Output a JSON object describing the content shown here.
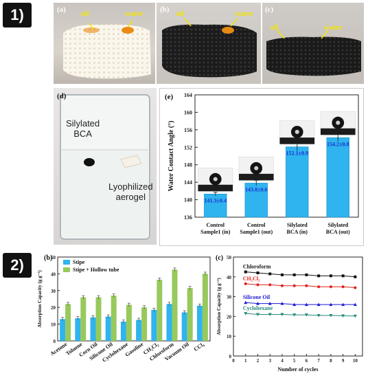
{
  "section1": {
    "label": "1)"
  },
  "section2": {
    "label": "2)"
  },
  "panel_a": {
    "letter": "(a)",
    "oil": "oil",
    "water": "water"
  },
  "panel_b": {
    "letter": "(b)",
    "oil": "oil",
    "water": "water"
  },
  "panel_c": {
    "letter": "(c)",
    "oil": "oil",
    "water": "water"
  },
  "panel_d": {
    "letter": "(d)",
    "silylated": "Silylated\nBCA",
    "lyophilized": "Lyophilized\naerogel"
  },
  "colors": {
    "bar_blue": "#2fb4ef",
    "bar_green": "#98c95c",
    "arrow_yellow": "#f2e600",
    "oil_orange": "#e98a12"
  },
  "chart_data": [
    {
      "panel": "(e)",
      "type": "bar",
      "ylabel": "Water Contact Angle (°)",
      "ylim": [
        136,
        164
      ],
      "yticks": [
        136,
        140,
        144,
        148,
        152,
        156,
        160,
        164
      ],
      "categories": [
        "Control\nSample1 (in)",
        "Control\nSample1 (out)",
        "Silylated\nBCA (in)",
        "Silylated\nBCA (out)"
      ],
      "values": [
        141.3,
        143.8,
        152.1,
        154.2
      ],
      "errors": [
        0.4,
        0.6,
        0.9,
        0.8
      ],
      "value_labels": [
        "141.3±0.4",
        "143.8±0.6",
        "152.1±0.9",
        "154.2±0.8"
      ],
      "color": "#2fb4ef"
    },
    {
      "panel": "(b)",
      "type": "bar",
      "ylabel": "Absorption Capacity (g g⁻¹)",
      "ylim": [
        0,
        50
      ],
      "yticks": [
        0,
        10,
        20,
        30,
        40,
        50
      ],
      "categories": [
        "Acetone",
        "Toluene",
        "Corn Oil",
        "Silicone Oil",
        "Cyclohexane",
        "Gasoline",
        "CH₂Cl₂",
        "Chloroform",
        "Vacuum Oil",
        "CCl₄"
      ],
      "series": [
        {
          "name": "Stipe",
          "color": "#2fb4ef",
          "values": [
            13,
            13.5,
            14,
            14.5,
            11.5,
            12.5,
            18.5,
            22,
            17,
            21
          ]
        },
        {
          "name": "Stipe + Hollow tube",
          "color": "#98c95c",
          "values": [
            22,
            26,
            26,
            27,
            21.5,
            20,
            36.5,
            42.5,
            31.5,
            40
          ]
        }
      ],
      "legend": "top-left"
    },
    {
      "panel": "(c)",
      "type": "line",
      "xlabel": "Number of cycles",
      "ylabel": "Absorption Capacity (g g⁻¹)",
      "x": [
        1,
        2,
        3,
        4,
        5,
        6,
        7,
        8,
        9,
        10
      ],
      "xticks": [
        0,
        1,
        2,
        3,
        4,
        5,
        6,
        7,
        8,
        9,
        10
      ],
      "ylim": [
        0,
        50
      ],
      "yticks": [
        0,
        10,
        20,
        30,
        40,
        50
      ],
      "series": [
        {
          "name": "Chloroform",
          "color": "#111111",
          "marker": "square",
          "values": [
            42.5,
            42,
            41.5,
            41,
            41,
            41,
            40.5,
            40.5,
            40.5,
            40
          ]
        },
        {
          "name": "CH₂Cl₂",
          "color": "#e0201c",
          "marker": "circle",
          "values": [
            36.5,
            36,
            36,
            35.5,
            35.5,
            35.5,
            35,
            35,
            35,
            34.5
          ]
        },
        {
          "name": "Silicone Oil",
          "color": "#1a1ad0",
          "marker": "triangle",
          "values": [
            27,
            26.5,
            26.5,
            26.5,
            26,
            26,
            26,
            26,
            26,
            26
          ]
        },
        {
          "name": "Cyclohexane",
          "color": "#238a7a",
          "marker": "triangle-down",
          "values": [
            21.5,
            21,
            21,
            21,
            20.8,
            20.8,
            20.5,
            20.5,
            20.3,
            20.2
          ]
        }
      ]
    }
  ]
}
